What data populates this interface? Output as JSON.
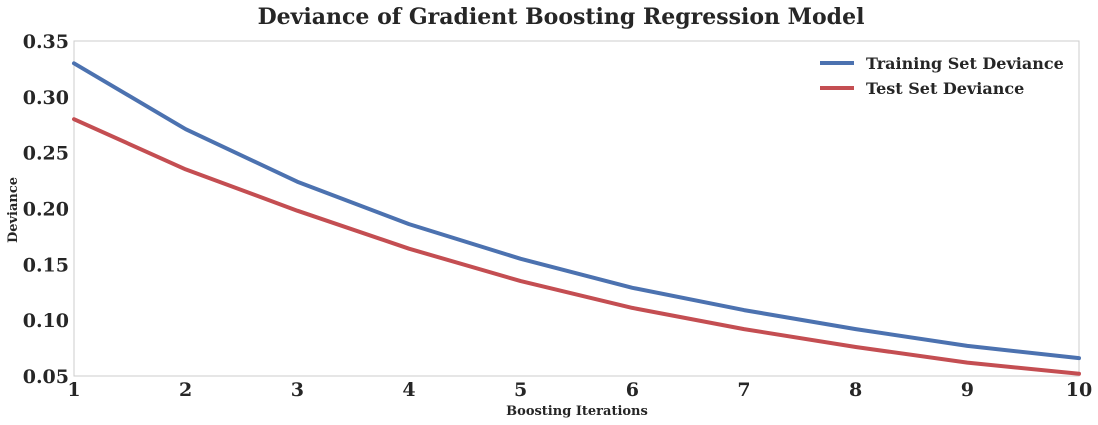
{
  "chart_data": {
    "type": "line",
    "title": "Deviance of Gradient Boosting Regression Model",
    "xlabel": "Boosting Iterations",
    "ylabel": "Deviance",
    "x": [
      1,
      2,
      3,
      4,
      5,
      6,
      7,
      8,
      9,
      10
    ],
    "xlim": [
      1,
      10
    ],
    "ylim": [
      0.05,
      0.35
    ],
    "x_ticks": [
      "1",
      "2",
      "3",
      "4",
      "5",
      "6",
      "7",
      "8",
      "9",
      "10"
    ],
    "y_ticks": [
      "0.05",
      "0.10",
      "0.15",
      "0.20",
      "0.25",
      "0.30",
      "0.35"
    ],
    "grid": false,
    "legend_position": "top-right",
    "series": [
      {
        "name": "Training Set Deviance",
        "color": "#4c72b0",
        "values": [
          0.33,
          0.271,
          0.224,
          0.186,
          0.155,
          0.129,
          0.109,
          0.092,
          0.077,
          0.066
        ]
      },
      {
        "name": "Test Set Deviance",
        "color": "#c44e52",
        "values": [
          0.28,
          0.235,
          0.198,
          0.164,
          0.135,
          0.111,
          0.092,
          0.076,
          0.062,
          0.052
        ]
      }
    ]
  }
}
